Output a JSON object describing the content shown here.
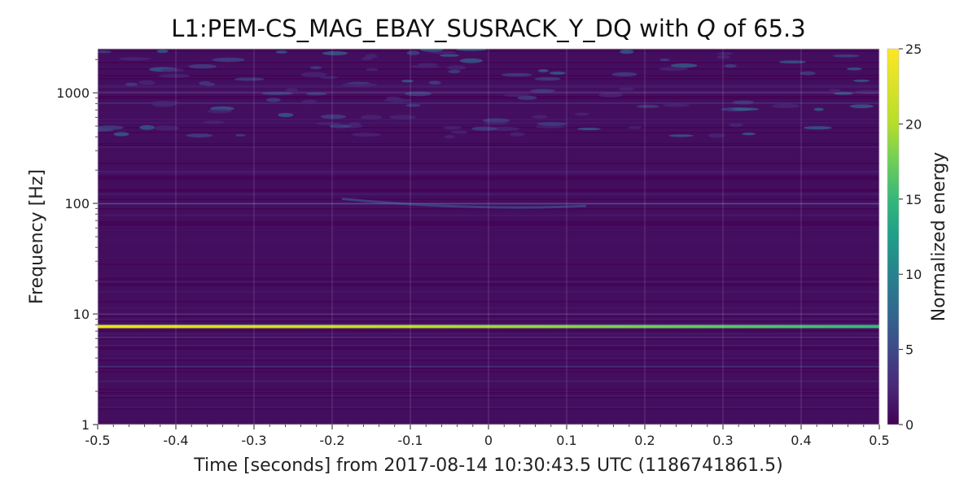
{
  "title": {
    "prefix": "L1:PEM-CS_MAG_EBAY_SUSRACK_Y_DQ with ",
    "q_symbol": "Q",
    "middle": " of ",
    "q_value": "65.3"
  },
  "chart_data": {
    "type": "heatmap",
    "title": "L1:PEM-CS_MAG_EBAY_SUSRACK_Y_DQ with Q of 65.3",
    "xlabel": "Time [seconds] from 2017-08-14 10:30:43.5 UTC (1186741861.5)",
    "ylabel": "Frequency [Hz]",
    "x_range": [
      -0.5,
      0.5
    ],
    "y_range": [
      1,
      2500
    ],
    "y_scale": "log",
    "x_ticks": [
      {
        "value": -0.5,
        "label": "-0.5"
      },
      {
        "value": -0.4,
        "label": "-0.4"
      },
      {
        "value": -0.3,
        "label": "-0.3"
      },
      {
        "value": -0.2,
        "label": "-0.2"
      },
      {
        "value": -0.1,
        "label": "-0.1"
      },
      {
        "value": 0,
        "label": "0"
      },
      {
        "value": 0.1,
        "label": "0.1"
      },
      {
        "value": 0.2,
        "label": "0.2"
      },
      {
        "value": 0.3,
        "label": "0.3"
      },
      {
        "value": 0.4,
        "label": "0.4"
      },
      {
        "value": 0.5,
        "label": "0.5"
      }
    ],
    "y_ticks": [
      {
        "value": 1,
        "label": "1"
      },
      {
        "value": 10,
        "label": "10"
      },
      {
        "value": 100,
        "label": "100"
      },
      {
        "value": 1000,
        "label": "1000"
      }
    ],
    "grid": true,
    "colormap": "viridis",
    "colorbar": {
      "label": "Normalized energy",
      "range": [
        0,
        25
      ],
      "ticks": [
        {
          "value": 0,
          "label": "0"
        },
        {
          "value": 5,
          "label": "5"
        },
        {
          "value": 10,
          "label": "10"
        },
        {
          "value": 15,
          "label": "15"
        },
        {
          "value": 20,
          "label": "20"
        },
        {
          "value": 25,
          "label": "25"
        }
      ]
    },
    "features": [
      {
        "name": "line",
        "frequency_hz": 7.7,
        "energy_start": 25,
        "energy_end": 15
      }
    ],
    "background_energy": 1.5
  }
}
